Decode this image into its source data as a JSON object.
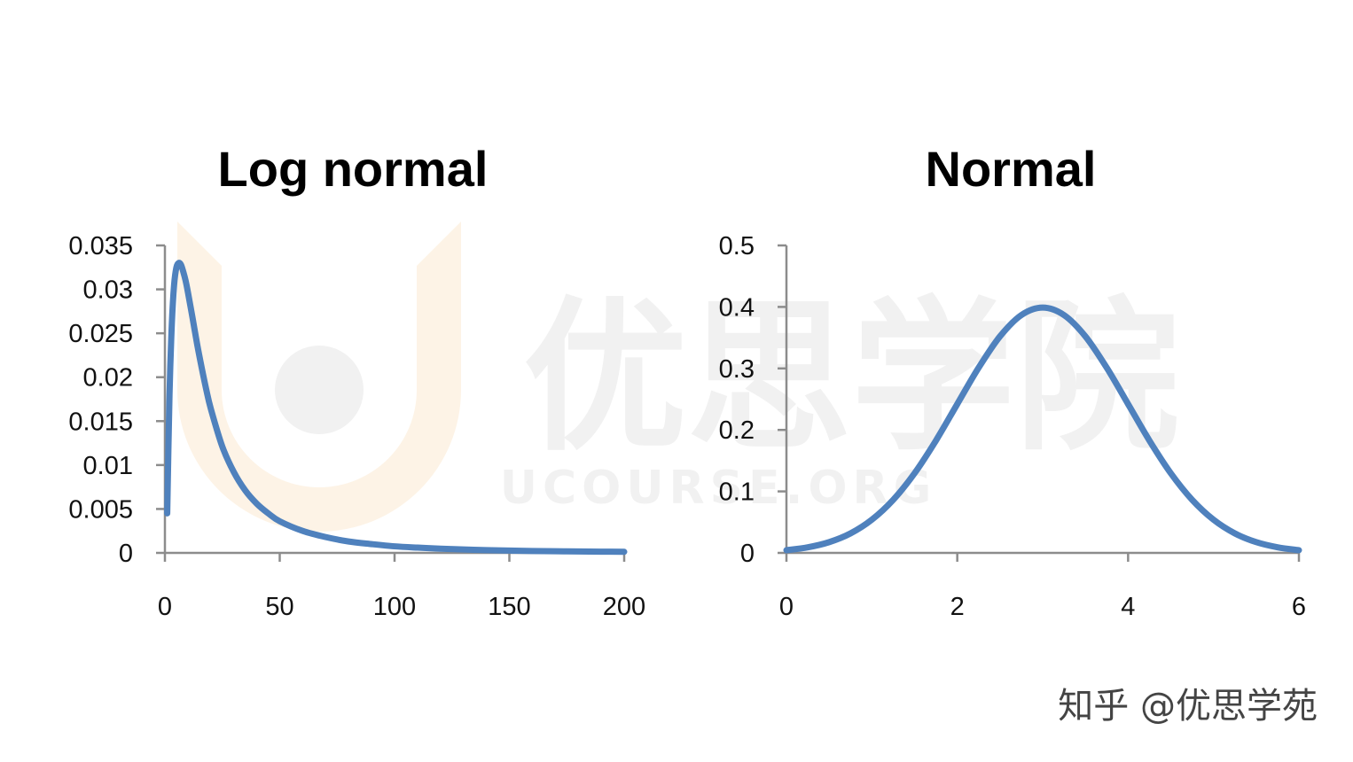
{
  "colors": {
    "series": "#4f81bd",
    "axis": "#8c8c8c",
    "watermark": "#f1f1f1",
    "watermark_logo": "#fdf3e6"
  },
  "watermark": {
    "cn": "优思学院",
    "en": "UCOURSE.ORG"
  },
  "footer": {
    "text": "知乎 @优思学苑"
  },
  "chart_data": [
    {
      "type": "line",
      "title": "Log normal",
      "xlabel": "",
      "ylabel": "",
      "xlim": [
        0,
        200
      ],
      "ylim": [
        0,
        0.035
      ],
      "x_ticks": [
        0,
        50,
        100,
        150,
        200
      ],
      "y_ticks": [
        0,
        0.005,
        0.01,
        0.015,
        0.02,
        0.025,
        0.03,
        0.035
      ],
      "x_tick_labels": [
        "0",
        "50",
        "100",
        "150",
        "200"
      ],
      "y_tick_labels": [
        "0",
        "0.005",
        "0.01",
        "0.015",
        "0.02",
        "0.025",
        "0.03",
        "0.035"
      ],
      "grid": false,
      "series": [
        {
          "x": [
            1,
            2,
            3,
            4,
            5,
            6,
            7,
            8,
            9,
            10,
            12,
            14,
            16,
            18,
            20,
            25,
            30,
            35,
            40,
            45,
            50,
            60,
            70,
            80,
            90,
            100,
            110,
            120,
            130,
            140,
            150,
            160,
            170,
            180,
            190,
            200
          ],
          "y": [
            0.0045,
            0.018,
            0.026,
            0.0305,
            0.0325,
            0.033,
            0.0328,
            0.032,
            0.031,
            0.0297,
            0.0268,
            0.0238,
            0.0211,
            0.0186,
            0.0164,
            0.0121,
            0.0092,
            0.0071,
            0.0056,
            0.0045,
            0.0036,
            0.0025,
            0.0018,
            0.0013,
            0.001,
            0.00075,
            0.0006,
            0.00048,
            0.00039,
            0.00032,
            0.00027,
            0.00022,
            0.00019,
            0.00016,
            0.00014,
            0.00012
          ]
        }
      ]
    },
    {
      "type": "line",
      "title": "Normal",
      "xlabel": "",
      "ylabel": "",
      "xlim": [
        0,
        6
      ],
      "ylim": [
        0,
        0.5
      ],
      "x_ticks": [
        0,
        2,
        4,
        6
      ],
      "y_ticks": [
        0,
        0.1,
        0.2,
        0.3,
        0.4,
        0.5
      ],
      "x_tick_labels": [
        "0",
        "2",
        "4",
        "6"
      ],
      "y_tick_labels": [
        "0",
        "0.1",
        "0.2",
        "0.3",
        "0.4",
        "0.5"
      ],
      "grid": false,
      "series": [
        {
          "x": [
            0,
            0.25,
            0.5,
            0.75,
            1,
            1.25,
            1.5,
            1.75,
            2,
            2.25,
            2.5,
            2.75,
            3,
            3.25,
            3.5,
            3.75,
            4,
            4.25,
            4.5,
            4.75,
            5,
            5.25,
            5.5,
            5.75,
            6
          ],
          "y": [
            0.0044,
            0.0091,
            0.0175,
            0.0317,
            0.054,
            0.0863,
            0.1295,
            0.1826,
            0.242,
            0.3011,
            0.3521,
            0.3867,
            0.3989,
            0.3867,
            0.3521,
            0.3011,
            0.242,
            0.1826,
            0.1295,
            0.0863,
            0.054,
            0.0317,
            0.0175,
            0.0091,
            0.0044
          ]
        }
      ]
    }
  ]
}
